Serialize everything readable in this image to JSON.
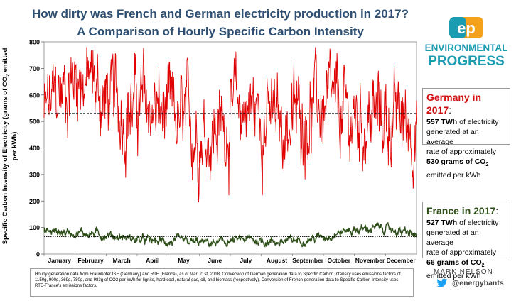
{
  "header": {
    "title_line1": "How dirty was French and German electricity production in 2017?",
    "title_line2": "A Comparison of Hourly Specific Carbon Intensity"
  },
  "logo": {
    "line1": "ENVIRONMENTAL",
    "line2": "PROGRESS"
  },
  "chart_data": {
    "type": "line",
    "ylabel_parts": [
      "Specific Carbon Intensity of Electricity (grams of CO",
      "2",
      " emitted per kWh)"
    ],
    "xlabel": "",
    "ylim": [
      0,
      800
    ],
    "yticks": [
      0,
      100,
      200,
      300,
      400,
      500,
      600,
      700,
      800
    ],
    "months": [
      "January",
      "February",
      "March",
      "April",
      "May",
      "June",
      "July",
      "August",
      "September",
      "October",
      "November",
      "December"
    ],
    "grid": false,
    "series": [
      {
        "name": "Germany",
        "color": "#e00000",
        "average": 530,
        "profile": [
          520,
          690,
          560,
          560,
          480,
          470,
          560,
          480,
          560,
          500,
          520,
          490
        ]
      },
      {
        "name": "France",
        "color": "#2f4f1a",
        "average": 66,
        "profile": [
          85,
          82,
          70,
          50,
          45,
          40,
          55,
          45,
          60,
          90,
          100,
          70
        ]
      }
    ]
  },
  "germany_box": {
    "heading": "Germany in 2017",
    "colon": ":",
    "line1_value": "557 TWh",
    "line1_rest": " of electricity",
    "line2": "generated at an average",
    "line3": "rate of approximately",
    "line4_value": "530 grams of CO",
    "line4_sub": "2",
    "line5": "emitted per kWh"
  },
  "france_box": {
    "heading": "France in 2017",
    "colon": ":",
    "line1_value": "527 TWh",
    "line1_rest": " of electricity",
    "line2": "generated at an average",
    "line3": "rate of approximately",
    "line4_value": "66 grams of CO",
    "line4_sub": "2",
    "line5": "emitted per kWh"
  },
  "footnote": "Hourly generation data from Fraunhofer ISE (Germany) and RTE (France), as of Mar. 21st, 2018. Conversion of German generation data to Specific Carbon Intensity uses emissions factors of 1150g, 900g, 369g, 780g, and 983g of CO2 per kWh for lignite, hard coal, natural gas, oil, and biomass (respectively). Conversion of French generation data to Specific Carbon Intensity uses RTE-France's emissions factors.",
  "author": {
    "name": "MARK NELSON",
    "handle": "@energybants"
  },
  "colors": {
    "title": "#2e4f72",
    "germany": "#e00000",
    "france": "#2f4f1a",
    "logo_teal": "#1c9cb0",
    "logo_orange": "#f4a21c"
  }
}
